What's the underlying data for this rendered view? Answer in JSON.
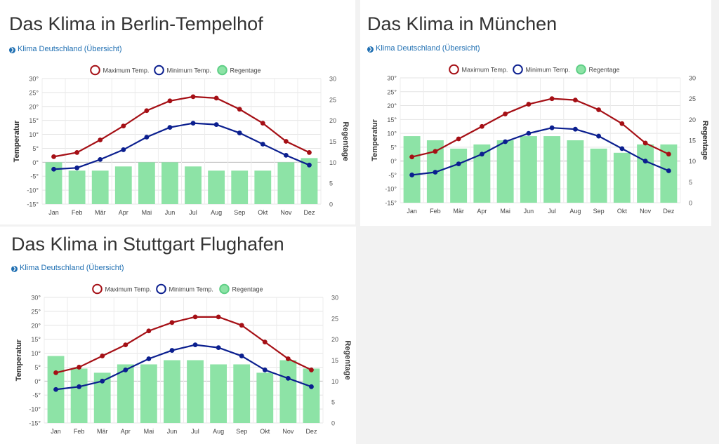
{
  "link_label": "Klima Deutschland (Übersicht)",
  "legend": {
    "max": "Maximum Temp.",
    "min": "Minimum Temp.",
    "rain": "Regentage"
  },
  "colors": {
    "max": "#a50f15",
    "min": "#0b1f8f",
    "rain": "#8de3a6",
    "rain_stroke": "#5fcf86"
  },
  "panels": [
    {
      "title": "Das Klima in Berlin-Tempelhof"
    },
    {
      "title": "Das Klima in München"
    },
    {
      "title": "Das Klima in Stuttgart Flughafen"
    }
  ],
  "chart_data": [
    {
      "type": "line+bar",
      "title": "Das Klima in Berlin-Tempelhof",
      "categories": [
        "Jan",
        "Feb",
        "Mär",
        "Apr",
        "Mai",
        "Jun",
        "Jul",
        "Aug",
        "Sep",
        "Okt",
        "Nov",
        "Dez"
      ],
      "ylabel": "Temperatur",
      "y2label": "Regentage",
      "ylim": [
        -15,
        30
      ],
      "yticks": [
        "30°",
        "25°",
        "20°",
        "15°",
        "10°",
        "5°",
        "0°",
        "-5°",
        "-10°",
        "-15°"
      ],
      "y2lim": [
        0,
        30
      ],
      "y2ticks": [
        "30",
        "25",
        "20",
        "15",
        "10",
        "5",
        "0"
      ],
      "grid": true,
      "legend_position": "top",
      "series": [
        {
          "name": "Maximum Temp.",
          "type": "line",
          "values": [
            2,
            3.5,
            8,
            13,
            18.5,
            22,
            23.5,
            23,
            19,
            14,
            7.5,
            3.5
          ]
        },
        {
          "name": "Minimum Temp.",
          "type": "line",
          "values": [
            -2.5,
            -2,
            1,
            4.5,
            9,
            12.5,
            14,
            13.5,
            10.5,
            6.5,
            2.5,
            -1
          ]
        },
        {
          "name": "Regentage",
          "type": "bar",
          "axis": "right",
          "values": [
            10,
            8,
            8,
            9,
            10,
            10,
            9,
            8,
            8,
            8,
            10,
            11
          ]
        }
      ]
    },
    {
      "type": "line+bar",
      "title": "Das Klima in München",
      "categories": [
        "Jan",
        "Feb",
        "Mär",
        "Apr",
        "Mai",
        "Jun",
        "Jul",
        "Aug",
        "Sep",
        "Okt",
        "Nov",
        "Dez"
      ],
      "ylabel": "Temperatur",
      "y2label": "Regentage",
      "ylim": [
        -15,
        30
      ],
      "yticks": [
        "30°",
        "25°",
        "20°",
        "15°",
        "10°",
        "5°",
        "0°",
        "-5°",
        "-10°",
        "-15°"
      ],
      "y2lim": [
        0,
        30
      ],
      "y2ticks": [
        "30",
        "25",
        "20",
        "15",
        "10",
        "5",
        "0"
      ],
      "grid": true,
      "legend_position": "top",
      "series": [
        {
          "name": "Maximum Temp.",
          "type": "line",
          "values": [
            1.5,
            3.5,
            8,
            12.5,
            17,
            20.5,
            22.5,
            22,
            18.5,
            13.5,
            6.5,
            2.5
          ]
        },
        {
          "name": "Minimum Temp.",
          "type": "line",
          "values": [
            -5,
            -4,
            -1,
            2.5,
            7,
            10,
            12,
            11.5,
            9,
            4.5,
            0,
            -3.5
          ]
        },
        {
          "name": "Regentage",
          "type": "bar",
          "axis": "right",
          "values": [
            16,
            15,
            13,
            14,
            15,
            16,
            16,
            15,
            13,
            12,
            14,
            14
          ]
        }
      ]
    },
    {
      "type": "line+bar",
      "title": "Das Klima in Stuttgart Flughafen",
      "categories": [
        "Jan",
        "Feb",
        "Mär",
        "Apr",
        "Mai",
        "Jun",
        "Jul",
        "Aug",
        "Sep",
        "Okt",
        "Nov",
        "Dez"
      ],
      "ylabel": "Temperatur",
      "y2label": "Regentage",
      "ylim": [
        -15,
        30
      ],
      "yticks": [
        "30°",
        "25°",
        "20°",
        "15°",
        "10°",
        "5°",
        "0°",
        "-5°",
        "-10°",
        "-15°"
      ],
      "y2lim": [
        0,
        30
      ],
      "y2ticks": [
        "30",
        "25",
        "20",
        "15",
        "10",
        "5",
        "0"
      ],
      "grid": true,
      "legend_position": "top",
      "series": [
        {
          "name": "Maximum Temp.",
          "type": "line",
          "values": [
            3,
            5,
            9,
            13,
            18,
            21,
            23,
            23,
            20,
            14,
            8,
            4
          ]
        },
        {
          "name": "Minimum Temp.",
          "type": "line",
          "values": [
            -3,
            -2,
            0,
            4,
            8,
            11,
            13,
            12,
            9,
            4,
            1,
            -2
          ]
        },
        {
          "name": "Regentage",
          "type": "bar",
          "axis": "right",
          "values": [
            16,
            13,
            12,
            14,
            14,
            15,
            15,
            14,
            14,
            12,
            15,
            13
          ]
        }
      ]
    }
  ]
}
